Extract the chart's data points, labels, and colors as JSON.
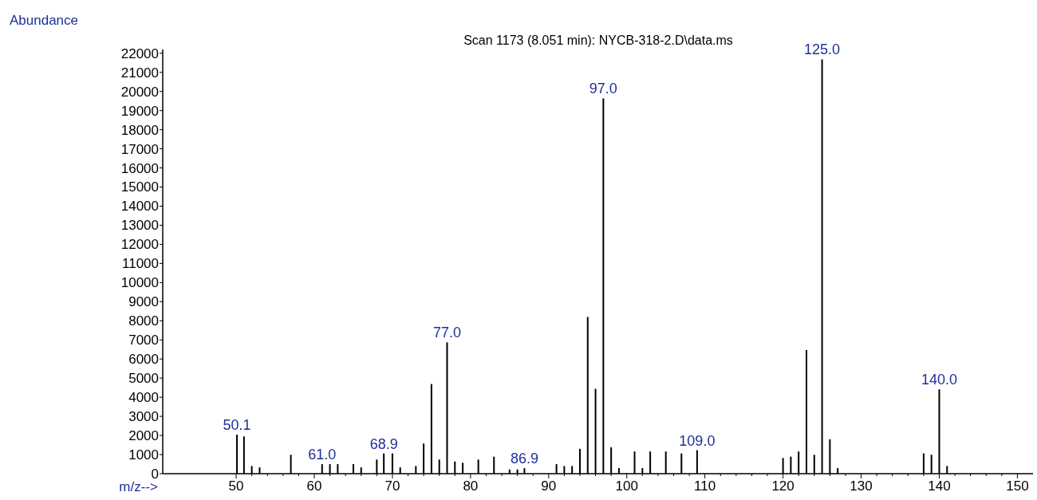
{
  "chart_data": {
    "type": "bar",
    "title": "Scan 1173 (8.051 min): NYCB-318-2.D\\data.ms",
    "xlabel": "m/z-->",
    "ylabel": "Abundance",
    "x": [
      50.1,
      51,
      52,
      53,
      57,
      61,
      62,
      63,
      65,
      66,
      68,
      68.9,
      70,
      71,
      73,
      74,
      75,
      76,
      77,
      78,
      79,
      81,
      83,
      85,
      86,
      86.9,
      91,
      92,
      93,
      94,
      95,
      96,
      97,
      98,
      99,
      101,
      102,
      103,
      105,
      107,
      109,
      120,
      121,
      122,
      123,
      124,
      125,
      126,
      127,
      138,
      139,
      140,
      141
    ],
    "values": [
      2040,
      1950,
      400,
      330,
      990,
      500,
      500,
      500,
      500,
      330,
      740,
      1060,
      1060,
      330,
      400,
      1580,
      4690,
      740,
      6870,
      640,
      570,
      740,
      890,
      220,
      220,
      290,
      500,
      400,
      400,
      1300,
      8200,
      4440,
      19640,
      1380,
      290,
      1160,
      290,
      1160,
      1160,
      1060,
      1230,
      820,
      890,
      1160,
      6470,
      990,
      21680,
      1800,
      290,
      1060,
      990,
      4410,
      400
    ],
    "color": "#000000",
    "xlim": [
      40.6,
      152
    ],
    "xticks": [
      50,
      60,
      70,
      80,
      90,
      100,
      110,
      120,
      130,
      140,
      150
    ],
    "ylim": [
      0,
      22200
    ],
    "yticks": [
      0,
      1000,
      2000,
      3000,
      4000,
      5000,
      6000,
      7000,
      8000,
      9000,
      10000,
      11000,
      12000,
      13000,
      14000,
      15000,
      16000,
      17000,
      18000,
      19000,
      20000,
      21000,
      22000
    ],
    "annotations": [
      {
        "text": "50.1",
        "x": 50.1,
        "y": 2040
      },
      {
        "text": "61.0",
        "x": 61,
        "y": 500
      },
      {
        "text": "68.9",
        "x": 68.9,
        "y": 1060
      },
      {
        "text": "77.0",
        "x": 77,
        "y": 6870
      },
      {
        "text": "86.9",
        "x": 86.9,
        "y": 290
      },
      {
        "text": "97.0",
        "x": 97,
        "y": 19640
      },
      {
        "text": "109.0",
        "x": 109,
        "y": 1230
      },
      {
        "text": "125.0",
        "x": 125,
        "y": 21680
      },
      {
        "text": "140.0",
        "x": 140,
        "y": 4410
      }
    ]
  }
}
